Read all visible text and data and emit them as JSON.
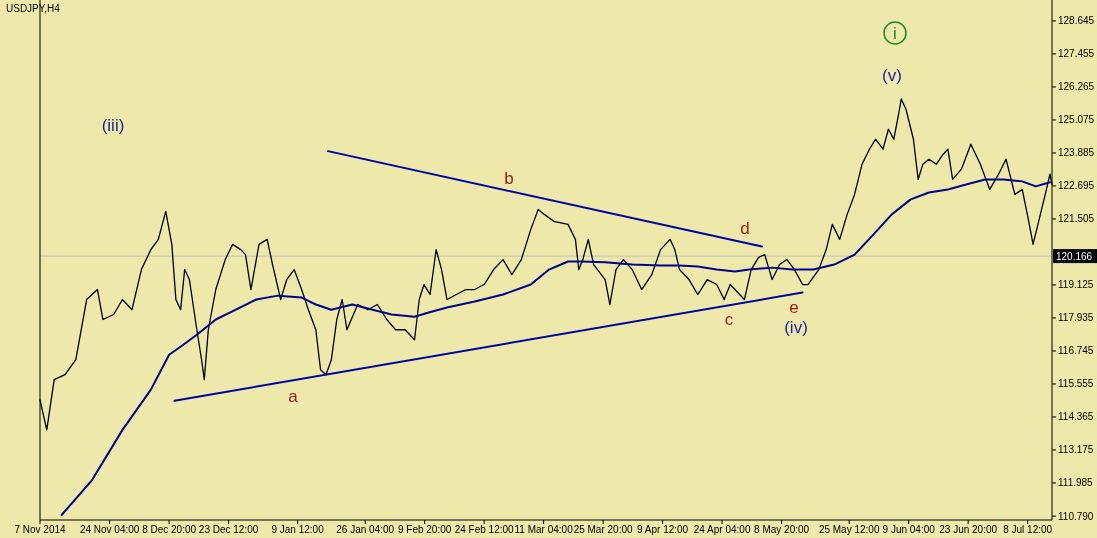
{
  "chart_data": {
    "type": "line",
    "title": "USDJPY,H4",
    "xlim": [
      "2014-11-07",
      "2015-07-14T12:00"
    ],
    "xticks": [
      {
        "value": "2014-11-07",
        "label": "7 Nov 2014"
      },
      {
        "value": "2014-11-24T04:00",
        "label": "24 Nov 04:00"
      },
      {
        "value": "2014-12-08T20:00",
        "label": "8 Dec 20:00"
      },
      {
        "value": "2014-12-23T12:00",
        "label": "23 Dec 12:00"
      },
      {
        "value": "2015-01-09T12:00",
        "label": "9 Jan 12:00"
      },
      {
        "value": "2015-01-26T04:00",
        "label": "26 Jan 04:00"
      },
      {
        "value": "2015-02-09T20:00",
        "label": "9 Feb 20:00"
      },
      {
        "value": "2015-02-24T12:00",
        "label": "24 Feb 12:00"
      },
      {
        "value": "2015-03-11T04:00",
        "label": "11 Mar 04:00"
      },
      {
        "value": "2015-03-25T20:00",
        "label": "25 Mar 20:00"
      },
      {
        "value": "2015-04-09T12:00",
        "label": "9 Apr 12:00"
      },
      {
        "value": "2015-04-24T04:00",
        "label": "24 Apr 04:00"
      },
      {
        "value": "2015-05-08T20:00",
        "label": "8 May 20:00"
      },
      {
        "value": "2015-05-25T12:00",
        "label": "25 May 12:00"
      },
      {
        "value": "2015-06-09T04:00",
        "label": "9 Jun 04:00"
      },
      {
        "value": "2015-06-23T20:00",
        "label": "23 Jun 20:00"
      },
      {
        "value": "2015-07-08T12:00",
        "label": "8 Jul 12:00"
      }
    ],
    "ylim": [
      110.65,
      129.4
    ],
    "yticks": [
      {
        "value": 110.79,
        "label": "110.790"
      },
      {
        "value": 111.985,
        "label": "111.985"
      },
      {
        "value": 113.175,
        "label": "113.175"
      },
      {
        "value": 114.365,
        "label": "114.365"
      },
      {
        "value": 115.555,
        "label": "115.555"
      },
      {
        "value": 116.745,
        "label": "116.745"
      },
      {
        "value": 117.935,
        "label": "117.935"
      },
      {
        "value": 119.125,
        "label": "119.125"
      },
      {
        "value": 121.505,
        "label": "121.505"
      },
      {
        "value": 122.695,
        "label": "122.695"
      },
      {
        "value": 123.885,
        "label": "123.885"
      },
      {
        "value": 125.075,
        "label": "125.075"
      },
      {
        "value": 126.265,
        "label": "126.265"
      },
      {
        "value": 127.455,
        "label": "127.455"
      },
      {
        "value": 128.645,
        "label": "128.645"
      }
    ],
    "ref_lines": [
      {
        "axis": "y",
        "value": 120.166,
        "label": "120.166",
        "color": "#c0c0c0"
      }
    ],
    "series": [
      {
        "color": "#000000",
        "x": [
          "2014-11-07T00:00",
          "2014-11-08T16:00",
          "2014-11-10T12:00",
          "2014-11-13T04:00",
          "2014-11-15T20:00",
          "2014-11-18T12:00",
          "2014-11-21T04:00",
          "2014-11-22T12:00",
          "2014-11-25T04:00",
          "2014-11-27T08:00",
          "2014-11-29T16:00",
          "2014-12-02T00:00",
          "2014-12-04T08:00",
          "2014-12-06T04:00",
          "2014-12-08T00:00",
          "2014-12-09T12:00",
          "2014-12-10T12:00",
          "2014-12-11T16:00",
          "2014-12-12T16:00",
          "2014-12-13T20:00",
          "2014-12-15T16:00",
          "2014-12-16T20:00",
          "2014-12-17T12:00",
          "2014-12-18T12:00",
          "2014-12-20T08:00",
          "2014-12-22T16:00",
          "2014-12-24T12:00",
          "2014-12-26T12:00",
          "2014-12-27T16:00",
          "2014-12-29T00:00",
          "2014-12-31T00:00",
          "2015-01-02T00:00",
          "2015-01-03T08:00",
          "2015-01-05T08:00",
          "2015-01-06T20:00",
          "2015-01-08T16:00",
          "2015-01-10T12:00",
          "2015-01-12T04:00",
          "2015-01-14T00:00",
          "2015-01-15T04:00",
          "2015-01-16T12:00",
          "2015-01-17T20:00",
          "2015-01-19T04:00",
          "2015-01-20T12:00",
          "2015-01-21T16:00",
          "2015-01-24T08:00",
          "2015-01-26T20:00",
          "2015-01-29T04:00",
          "2015-01-31T12:00",
          "2015-02-02T16:00",
          "2015-02-05T00:00",
          "2015-02-07T08:00",
          "2015-02-08T12:00",
          "2015-02-09T16:00",
          "2015-02-11T04:00",
          "2015-02-12T16:00",
          "2015-02-14T00:00",
          "2015-02-15T08:00",
          "2015-02-17T16:00",
          "2015-02-20T00:00",
          "2015-02-22T04:00",
          "2015-02-24T12:00",
          "2015-02-26T20:00",
          "2015-03-01T04:00",
          "2015-03-03T08:00",
          "2015-03-05T16:00",
          "2015-03-08T00:00",
          "2015-03-09T20:00",
          "2015-03-11T08:00",
          "2015-03-13T16:00",
          "2015-03-17T04:00",
          "2015-03-19T00:00",
          "2015-03-19T20:00",
          "2015-03-20T20:00",
          "2015-03-22T04:00",
          "2015-03-23T12:00",
          "2015-03-26T08:00",
          "2015-03-27T12:00",
          "2015-03-29T00:00",
          "2015-03-30T20:00",
          "2015-04-02T00:00",
          "2015-04-04T08:00",
          "2015-04-06T20:00",
          "2015-04-09T00:00",
          "2015-04-11T08:00",
          "2015-04-12T12:00",
          "2015-04-13T16:00",
          "2015-04-16T00:00",
          "2015-04-18T04:00",
          "2015-04-20T12:00",
          "2015-04-22T20:00",
          "2015-04-24T16:00",
          "2015-04-26T04:00",
          "2015-04-28T12:00",
          "2015-04-29T16:00",
          "2015-05-01T08:00",
          "2015-05-03T04:00",
          "2015-05-04T16:00",
          "2015-05-06T12:00",
          "2015-05-08T08:00",
          "2015-05-10T04:00",
          "2015-05-12T00:00",
          "2015-05-14T00:00",
          "2015-05-15T08:00",
          "2015-05-18T00:00",
          "2015-05-19T20:00",
          "2015-05-21T08:00",
          "2015-05-23T04:00",
          "2015-05-25T00:00",
          "2015-05-26T20:00",
          "2015-05-28T16:00",
          "2015-05-30T12:00",
          "2015-06-01T00:00",
          "2015-06-02T20:00",
          "2015-06-04T04:00",
          "2015-06-05T12:00",
          "2015-06-06T16:00",
          "2015-06-07T08:00",
          "2015-06-08T12:00",
          "2015-06-10T08:00",
          "2015-06-11T12:00",
          "2015-06-12T16:00",
          "2015-06-14T04:00",
          "2015-06-16T00:00",
          "2015-06-17T16:00",
          "2015-06-18T20:00",
          "2015-06-20T00:00",
          "2015-06-22T04:00",
          "2015-06-24T12:00",
          "2015-06-26T20:00",
          "2015-06-29T04:00",
          "2015-07-01T08:00",
          "2015-07-03T04:00",
          "2015-07-05T08:00",
          "2015-07-07T04:00",
          "2015-07-08T16:00",
          "2015-07-09T20:00",
          "2015-07-11T08:00",
          "2015-07-12T20:00",
          "2015-07-14T00:00",
          "2015-07-14T12:00"
        ],
        "values": [
          114.98,
          113.9,
          115.71,
          115.89,
          116.43,
          118.6,
          118.96,
          117.88,
          118.06,
          118.6,
          118.23,
          119.68,
          120.4,
          120.77,
          121.78,
          120.59,
          118.6,
          118.23,
          119.68,
          119.32,
          117.51,
          116.43,
          115.71,
          117.51,
          118.96,
          120.04,
          120.59,
          120.4,
          120.22,
          118.96,
          120.59,
          120.77,
          119.86,
          118.6,
          119.32,
          119.68,
          118.96,
          118.23,
          117.51,
          116.07,
          115.89,
          116.43,
          117.88,
          118.6,
          117.51,
          118.42,
          118.23,
          118.42,
          117.88,
          117.51,
          117.51,
          117.15,
          118.6,
          119.14,
          118.78,
          120.4,
          119.68,
          118.6,
          118.78,
          118.96,
          118.96,
          119.14,
          119.68,
          120.04,
          119.5,
          120.04,
          121.13,
          121.85,
          121.67,
          121.42,
          121.31,
          120.77,
          119.68,
          120.04,
          120.77,
          119.86,
          119.32,
          118.42,
          119.68,
          120.04,
          119.68,
          118.96,
          119.5,
          120.4,
          120.77,
          120.4,
          119.68,
          119.32,
          118.78,
          119.32,
          119.14,
          118.6,
          119.14,
          118.78,
          118.6,
          119.68,
          120.12,
          120.22,
          119.32,
          119.86,
          120.04,
          119.68,
          119.14,
          119.14,
          119.68,
          120.4,
          121.31,
          120.77,
          121.67,
          122.39,
          123.48,
          124.02,
          124.38,
          124.02,
          124.74,
          124.38,
          125.28,
          125.83,
          125.46,
          124.38,
          122.93,
          123.48,
          123.66,
          123.48,
          123.84,
          124.02,
          122.93,
          123.3,
          124.2,
          123.48,
          122.57,
          123.12,
          123.66,
          122.39,
          122.57,
          121.49,
          120.59,
          121.49,
          122.39,
          123.12,
          122.75
        ]
      },
      {
        "color": "#00008b",
        "x": [
          "2014-11-12T08:00",
          "2014-11-19T20:00",
          "2014-11-27T08:00",
          "2014-12-04T08:00",
          "2014-12-08T20:00",
          "2014-12-12T08:00",
          "2014-12-15T16:00",
          "2014-12-20T08:00",
          "2014-12-25T04:00",
          "2014-12-30T08:00",
          "2015-01-04T16:00",
          "2015-01-10T12:00",
          "2015-01-14T00:00",
          "2015-01-17T20:00",
          "2015-01-23T00:00",
          "2015-01-28T00:00",
          "2015-02-01T16:00",
          "2015-02-07T08:00",
          "2015-02-10T20:00",
          "2015-02-15T08:00",
          "2015-02-22T04:00",
          "2015-03-01T04:00",
          "2015-03-08T00:00",
          "2015-03-12T12:00",
          "2015-03-17T04:00",
          "2015-03-20T12:00",
          "2015-03-26T08:00",
          "2015-04-02T00:00",
          "2015-04-09T00:00",
          "2015-04-13T16:00",
          "2015-04-18T04:00",
          "2015-04-22T20:00",
          "2015-04-27T08:00",
          "2015-04-30T20:00",
          "2015-05-06T12:00",
          "2015-05-11T12:00",
          "2015-05-16T16:00",
          "2015-05-21T20:00",
          "2015-05-26T20:00",
          "2015-05-31T12:00",
          "2015-06-05T00:00",
          "2015-06-09T16:00",
          "2015-06-14T04:00",
          "2015-06-18T20:00",
          "2015-06-23T08:00",
          "2015-06-28T00:00",
          "2015-07-02T12:00",
          "2015-07-07T04:00",
          "2015-07-10T12:00",
          "2015-07-14T00:00"
        ],
        "values": [
          110.83,
          112.09,
          113.9,
          115.35,
          116.61,
          116.97,
          117.33,
          117.88,
          118.23,
          118.6,
          118.74,
          118.67,
          118.42,
          118.23,
          118.42,
          118.23,
          118.06,
          117.98,
          118.13,
          118.31,
          118.53,
          118.78,
          119.14,
          119.68,
          119.97,
          119.97,
          119.94,
          119.86,
          119.83,
          119.83,
          119.79,
          119.68,
          119.61,
          119.68,
          119.75,
          119.68,
          119.68,
          119.86,
          120.22,
          120.95,
          121.67,
          122.21,
          122.46,
          122.57,
          122.75,
          122.93,
          122.93,
          122.86,
          122.68,
          122.83
        ]
      },
      {
        "color": "#0000a0",
        "x": [
          "2015-01-17T00:00",
          "2015-05-04T00:00"
        ],
        "values": [
          123.95,
          120.51
        ]
      },
      {
        "color": "#0000a0",
        "x": [
          "2014-12-10T04:00",
          "2015-05-14T00:00"
        ],
        "values": [
          114.95,
          118.85
        ]
      }
    ],
    "annotations": [
      "(iii)",
      "a",
      "b",
      "c",
      "d",
      "e",
      "(iv)",
      "(v)",
      "i"
    ]
  }
}
